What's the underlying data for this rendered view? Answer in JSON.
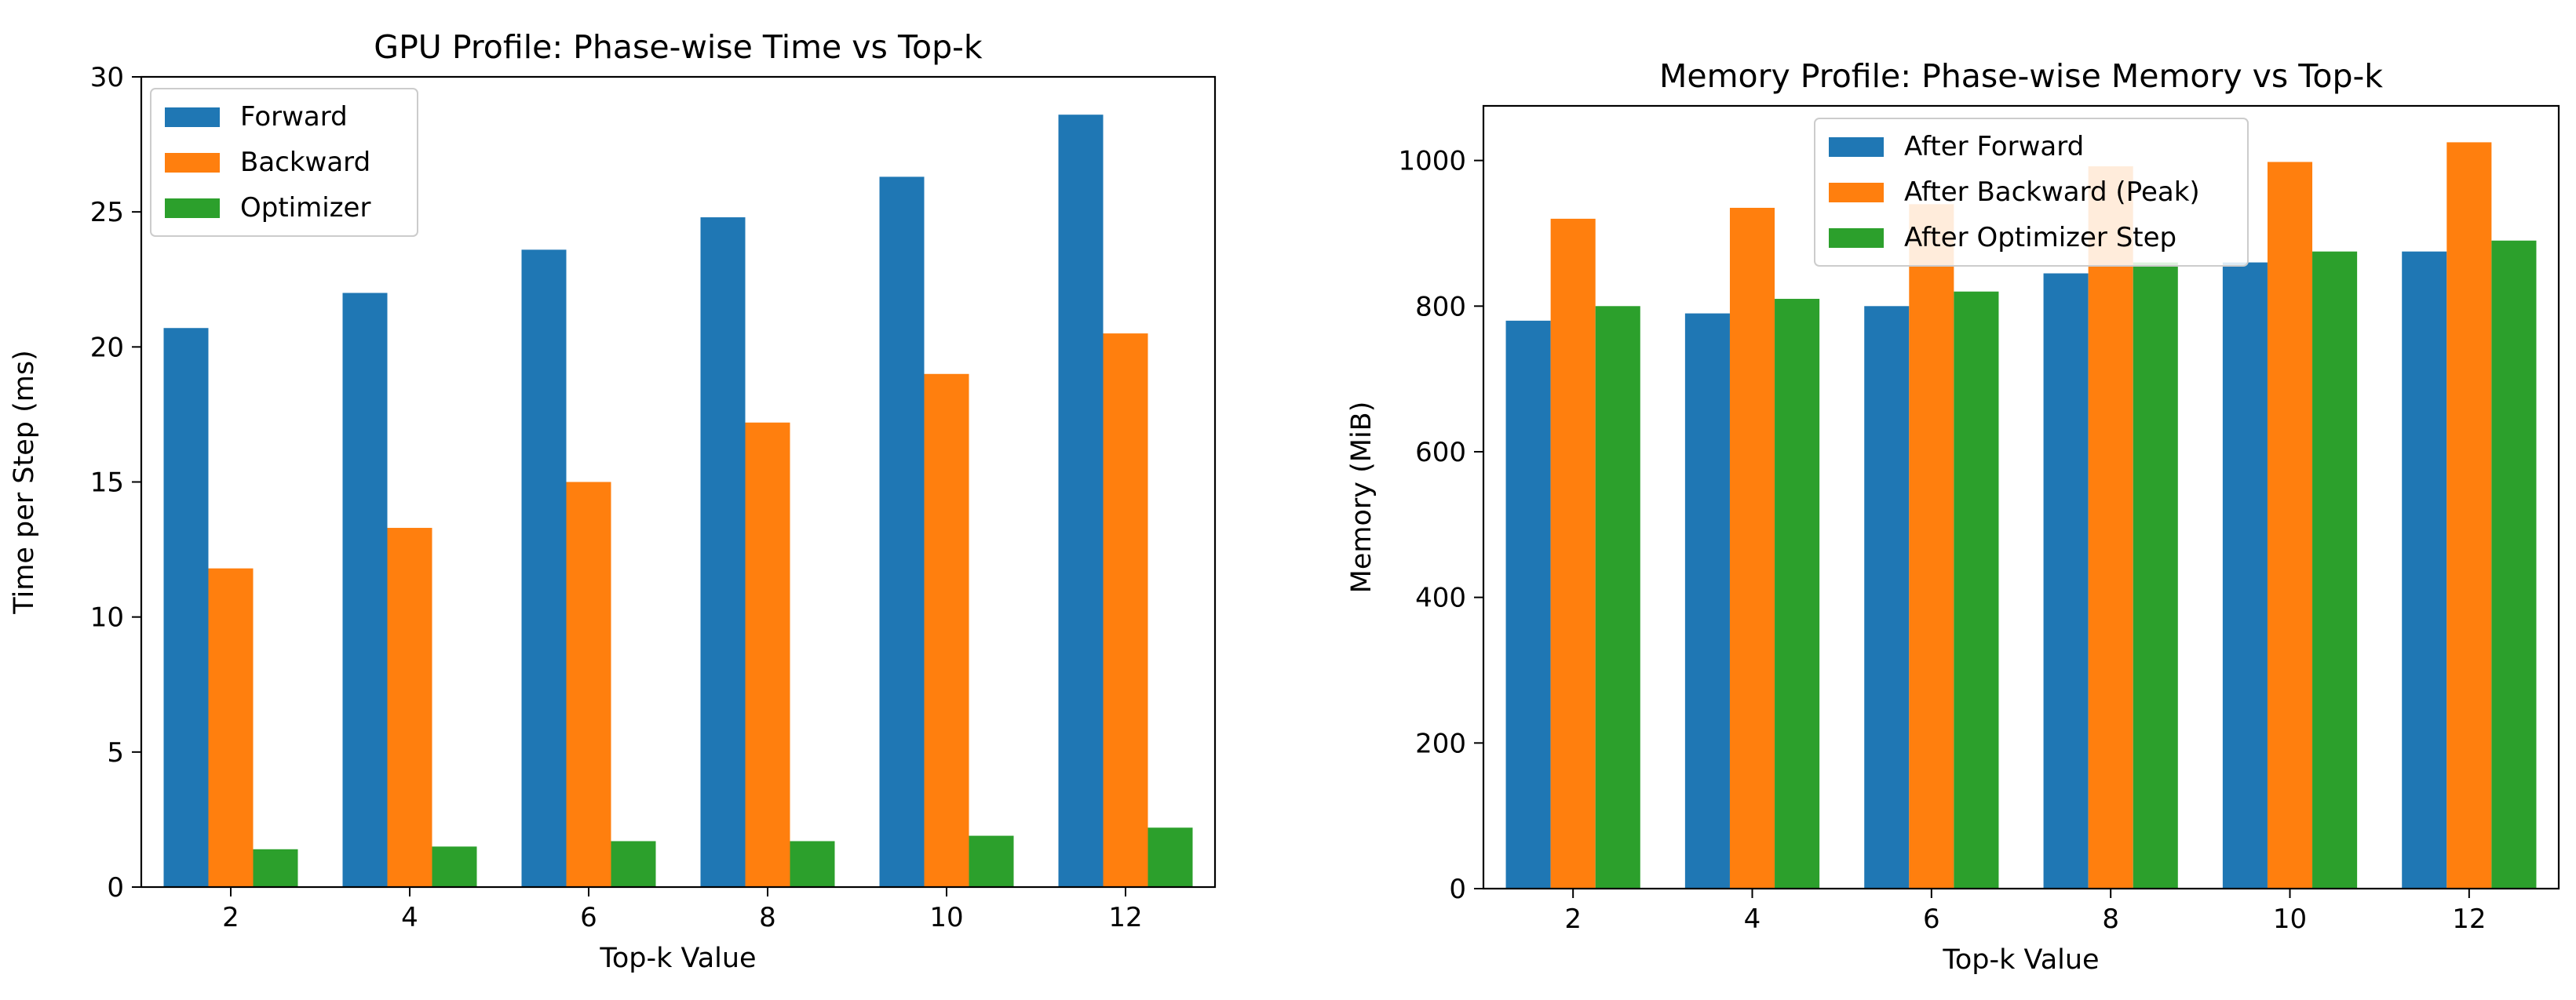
{
  "chart_data": [
    {
      "type": "bar",
      "title": "GPU Profile: Phase-wise Time vs Top-k",
      "xlabel": "Top-k Value",
      "ylabel": "Time per Step (ms)",
      "categories": [
        "2",
        "4",
        "6",
        "8",
        "10",
        "12"
      ],
      "ylim": [
        0,
        30
      ],
      "yticks": [
        0,
        5,
        10,
        15,
        20,
        25,
        30
      ],
      "grid": false,
      "legend_placement": "upper-left",
      "series": [
        {
          "name": "Forward",
          "color": "#1f77b4",
          "values": [
            20.7,
            22.0,
            23.6,
            24.8,
            26.3,
            28.6
          ]
        },
        {
          "name": "Backward",
          "color": "#ff7f0e",
          "values": [
            11.8,
            13.3,
            15.0,
            17.2,
            19.0,
            20.5
          ]
        },
        {
          "name": "Optimizer",
          "color": "#2ca02c",
          "values": [
            1.4,
            1.5,
            1.7,
            1.7,
            1.9,
            2.2
          ]
        }
      ]
    },
    {
      "type": "bar",
      "title": "Memory Profile: Phase-wise Memory vs Top-k",
      "xlabel": "Top-k Value",
      "ylabel": "Memory (MiB)",
      "categories": [
        "2",
        "4",
        "6",
        "8",
        "10",
        "12"
      ],
      "ylim": [
        0,
        1075
      ],
      "yticks": [
        0,
        200,
        400,
        600,
        800,
        1000
      ],
      "grid": false,
      "legend_placement": "upper-center",
      "series": [
        {
          "name": "After Forward",
          "color": "#1f77b4",
          "values": [
            780,
            790,
            800,
            845,
            860,
            875
          ]
        },
        {
          "name": "After Backward (Peak)",
          "color": "#ff7f0e",
          "values": [
            920,
            935,
            940,
            992,
            998,
            1025
          ]
        },
        {
          "name": "After Optimizer Step",
          "color": "#2ca02c",
          "values": [
            800,
            810,
            820,
            860,
            875,
            890
          ]
        }
      ]
    }
  ]
}
